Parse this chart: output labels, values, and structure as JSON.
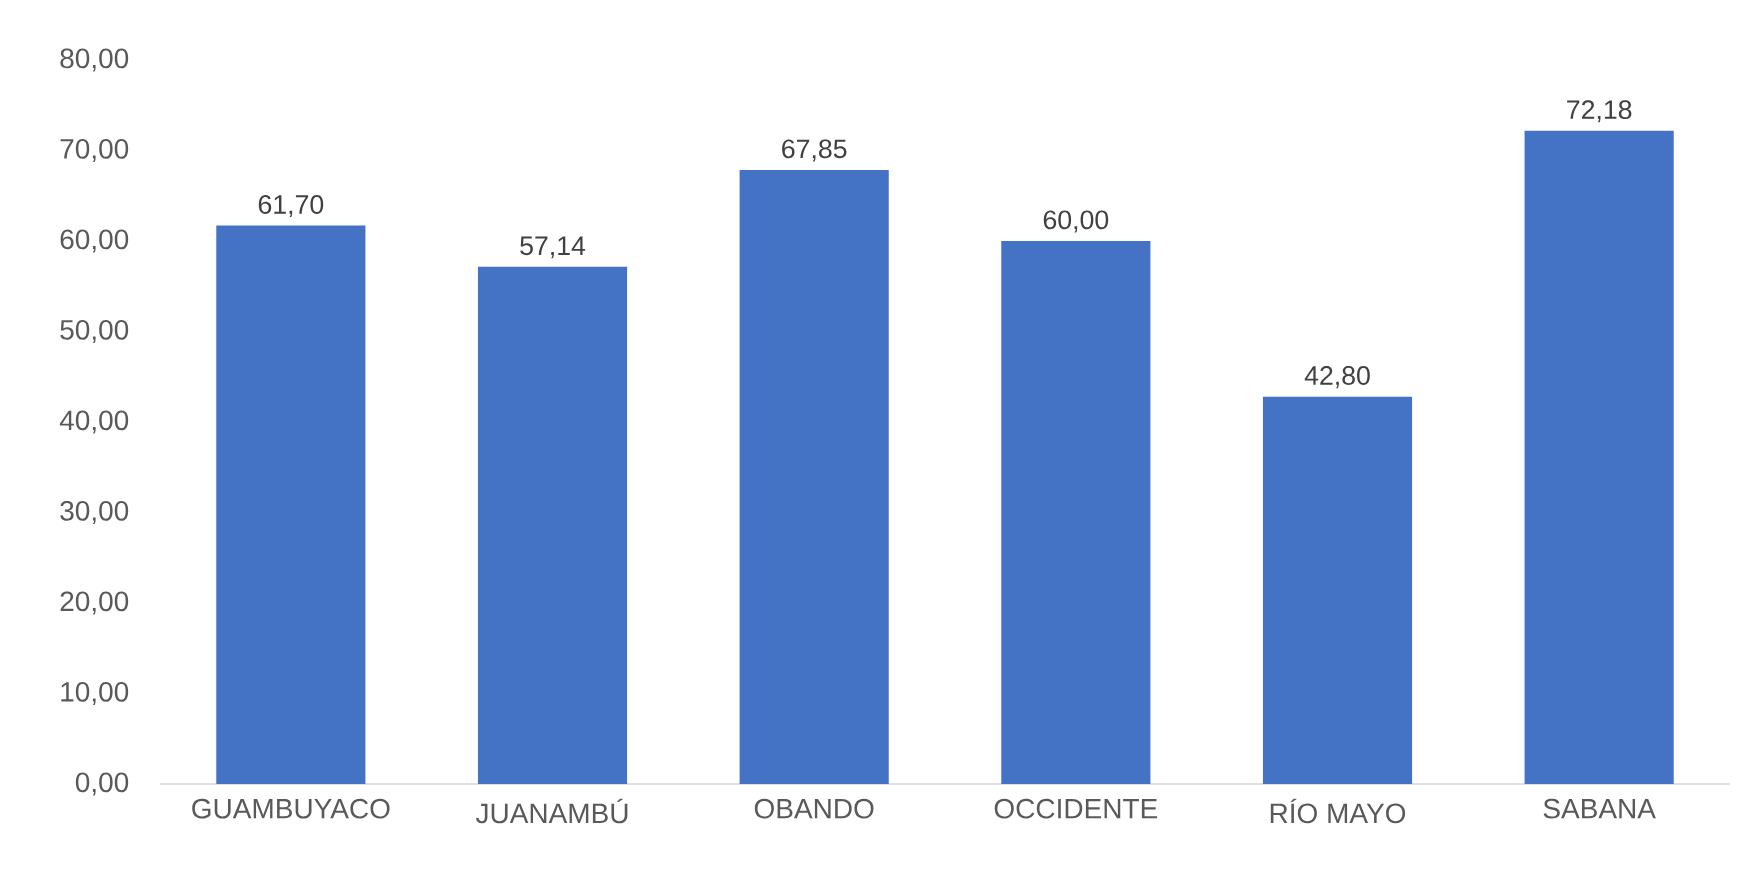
{
  "chart_data": {
    "type": "bar",
    "categories": [
      "GUAMBUYACO",
      "JUANAMBÚ",
      "OBANDO",
      "OCCIDENTE",
      "RÍO MAYO",
      "SABANA"
    ],
    "values": [
      61.7,
      57.14,
      67.85,
      60.0,
      42.8,
      72.18
    ],
    "value_labels": [
      "61,70",
      "57,14",
      "67,85",
      "60,00",
      "42,80",
      "72,18"
    ],
    "color": "#4472c4",
    "ylim": [
      0,
      80
    ],
    "yticks": [
      {
        "value": 0,
        "label": "0,00"
      },
      {
        "value": 10,
        "label": "10,00"
      },
      {
        "value": 20,
        "label": "20,00"
      },
      {
        "value": 30,
        "label": "30,00"
      },
      {
        "value": 40,
        "label": "40,00"
      },
      {
        "value": 50,
        "label": "50,00"
      },
      {
        "value": 60,
        "label": "60,00"
      },
      {
        "value": 70,
        "label": "70,00"
      },
      {
        "value": 80,
        "label": "80,00"
      }
    ]
  }
}
